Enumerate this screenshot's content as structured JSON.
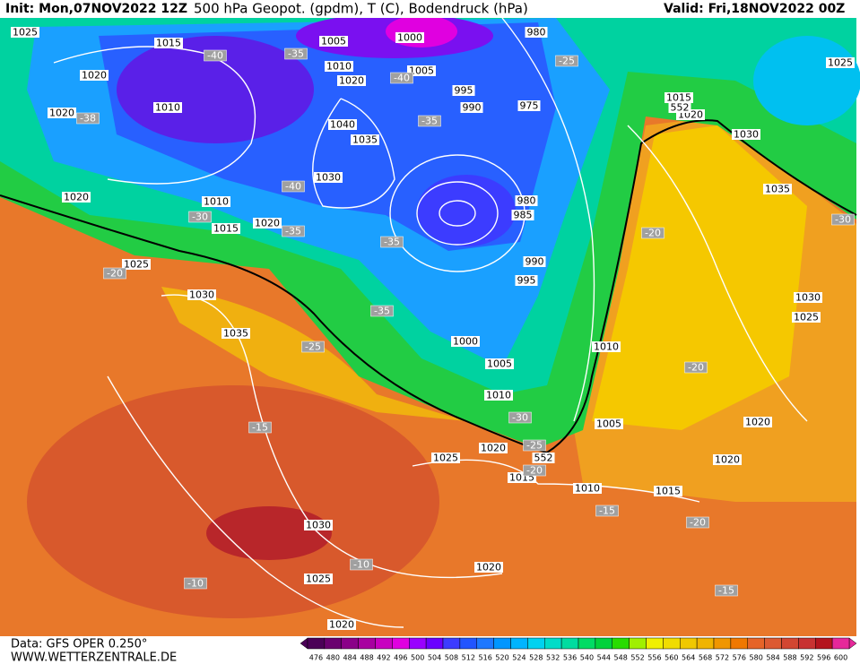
{
  "header": {
    "init": "Init: Mon,07NOV2022 12Z",
    "title": "500 hPa Geopot. (gpdm), T (C), Bodendruck (hPa)",
    "valid": "Valid: Fri,18NOV2022 00Z"
  },
  "footer": {
    "data": "Data: GFS OPER 0.250°",
    "site": "WWW.WETTERZENTRALE.DE"
  },
  "isobar_labels": [
    "1025",
    "1015",
    "1005",
    "1000",
    "980",
    "1025",
    "1020",
    "1010",
    "1005",
    "1020",
    "995",
    "990",
    "975",
    "1015",
    "1020",
    "1030",
    "1010",
    "1020",
    "1040",
    "1035",
    "1030",
    "1035",
    "1020",
    "1010",
    "980",
    "985",
    "1015",
    "1020",
    "990",
    "995",
    "1025",
    "1030",
    "1030",
    "1025",
    "1035",
    "1000",
    "1010",
    "1005",
    "1010",
    "1005",
    "1020",
    "1020",
    "1025",
    "1020",
    "1015",
    "1010",
    "1015",
    "1030",
    "1020",
    "1025",
    "1020",
    "552",
    "552"
  ],
  "temperature_labels": [
    "-40",
    "-35",
    "-40",
    "-38",
    "-25",
    "-35",
    "-40",
    "-30",
    "-35",
    "-35",
    "-20",
    "-20",
    "-35",
    "-25",
    "-20",
    "-15",
    "-30",
    "-25",
    "-20",
    "-15",
    "-20",
    "-10",
    "-10",
    "-15",
    "-30"
  ],
  "colorbar": {
    "labels": [
      476,
      480,
      484,
      488,
      492,
      496,
      500,
      504,
      508,
      512,
      516,
      520,
      524,
      528,
      532,
      536,
      540,
      544,
      548,
      552,
      556,
      560,
      564,
      568,
      572,
      576,
      580,
      584,
      588,
      592,
      596,
      600
    ],
    "colors": [
      "#4b0057",
      "#6a006f",
      "#8a0088",
      "#a800a0",
      "#c800c0",
      "#e000e0",
      "#9900ff",
      "#6a00ff",
      "#3c3cff",
      "#2255ff",
      "#1e78ff",
      "#0096ff",
      "#00b4ff",
      "#00d2f0",
      "#00dcc8",
      "#00dca0",
      "#00dc64",
      "#00d23c",
      "#28dc00",
      "#a0f000",
      "#f0f000",
      "#f0dc00",
      "#f0c800",
      "#f0b400",
      "#f09600",
      "#f07800",
      "#e66428",
      "#dc5a32",
      "#d24632",
      "#c83232",
      "#b4141e",
      "#e6289a"
    ]
  }
}
